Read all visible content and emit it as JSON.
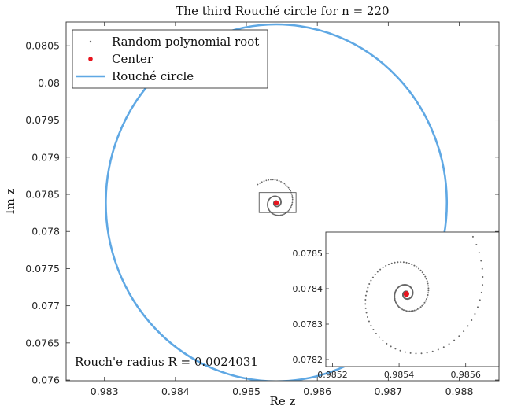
{
  "chart_data": {
    "type": "scatter",
    "title": "The third Rouché circle for n = 220",
    "xlabel": "Re z",
    "ylabel": "Im z",
    "xlim": [
      0.98246,
      0.98856
    ],
    "ylim": [
      0.07599,
      0.08082
    ],
    "xticks": [
      "0.983",
      "0.984",
      "0.985",
      "0.986",
      "0.987",
      "0.988"
    ],
    "yticks": [
      "0.076",
      "0.0765",
      "0.077",
      "0.0775",
      "0.078",
      "0.0785",
      "0.079",
      "0.0795",
      "0.08",
      "0.0805"
    ],
    "grid": false,
    "legend_position": "top-left",
    "legend": [
      "Random polynomial root",
      "Center",
      "Rouché circle"
    ],
    "center": {
      "x": 0.985422,
      "y": 0.078385
    },
    "radius": 0.0024031,
    "annotation": "Rouch'e radius R = 0.0024031",
    "root_spiral": {
      "turns": 3.3,
      "a_min": 6e-06,
      "a_max": 0.00036
    },
    "zoom_box": {
      "x": [
        0.98518,
        0.9857
      ],
      "y": [
        0.078255,
        0.078525
      ]
    },
    "inset": {
      "xlim": [
        0.98518,
        0.9857
      ],
      "ylim": [
        0.07818,
        0.07856
      ],
      "xticks": [
        "0.9852",
        "0.9854",
        "0.9856"
      ],
      "yticks": [
        "0.0782",
        "0.0783",
        "0.0784",
        "0.0785"
      ]
    },
    "colors": {
      "roots": "#666666",
      "center": "#e8141e",
      "circle": "#5fa8e4",
      "axes": "#333333"
    }
  }
}
